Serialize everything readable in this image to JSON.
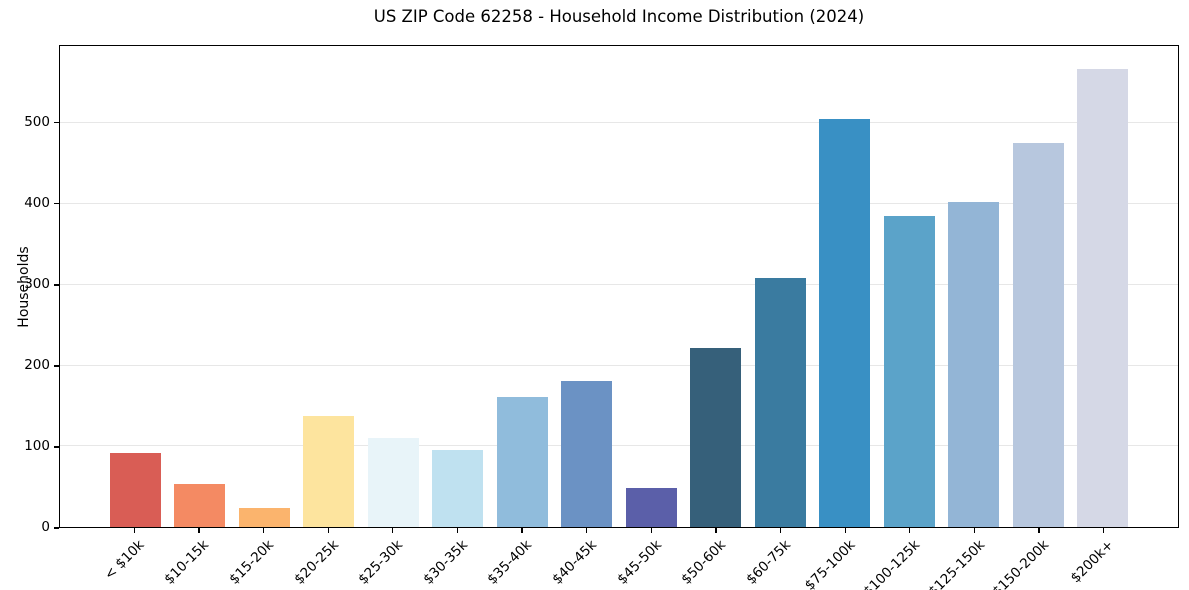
{
  "chart_data": {
    "type": "bar",
    "title": "US ZIP Code 62258 - Household Income Distribution (2024)",
    "xlabel": "",
    "ylabel": "Households",
    "categories": [
      "< $10k",
      "$10-15k",
      "$15-20k",
      "$20-25k",
      "$25-30k",
      "$30-35k",
      "$35-40k",
      "$40-45k",
      "$45-50k",
      "$50-60k",
      "$60-75k",
      "$75-100k",
      "$100-125k",
      "$125-150k",
      "$150-200k",
      "$200k+"
    ],
    "values": [
      92,
      53,
      23,
      137,
      110,
      95,
      161,
      181,
      48,
      222,
      308,
      505,
      385,
      403,
      476,
      568
    ],
    "bar_colors": [
      "#d95d55",
      "#f48a63",
      "#fbb46d",
      "#fde49e",
      "#e8f4f9",
      "#bfe1f0",
      "#90bcdc",
      "#6b92c4",
      "#5b5fa9",
      "#36607a",
      "#3a7ba0",
      "#3990c4",
      "#5ba3c9",
      "#93b5d6",
      "#b7c7de",
      "#d5d8e6"
    ],
    "yticks": [
      0,
      100,
      200,
      300,
      400,
      500
    ],
    "ylim": [
      0,
      596
    ],
    "grid": "horizontal",
    "legend": "none",
    "colors": {
      "grid": "#e7e7e7",
      "frame": "#000000",
      "text": "#000000",
      "background": "#ffffff"
    }
  }
}
